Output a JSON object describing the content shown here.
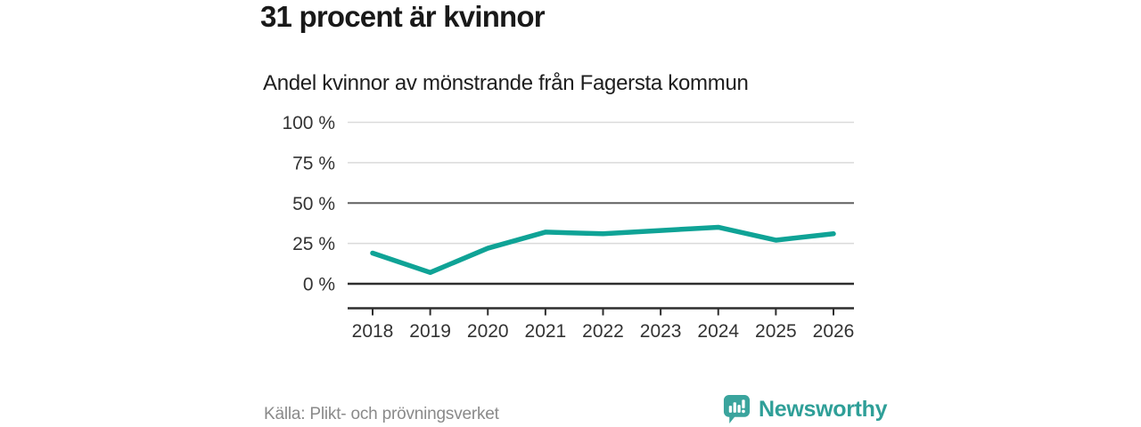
{
  "chart_data": {
    "type": "line",
    "title": "31 procent är kvinnor",
    "subtitle": "Andel kvinnor av mönstrande från Fagersta kommun",
    "categories": [
      "2018",
      "2019",
      "2020",
      "2021",
      "2022",
      "2023",
      "2024",
      "2025",
      "2026"
    ],
    "series": [
      {
        "name": "Andel kvinnor",
        "values": [
          19,
          7,
          22,
          32,
          31,
          33,
          35,
          27,
          31
        ]
      }
    ],
    "xlabel": "",
    "ylabel": "",
    "ylim": [
      0,
      100
    ],
    "yticks": [
      0,
      25,
      50,
      75,
      100
    ],
    "ytick_suffix": " %",
    "grid": "horizontal",
    "legend_position": "none"
  },
  "footer": {
    "source": "Källa: Plikt- och prövningsverket",
    "brand": "Newsworthy"
  },
  "icons": {
    "logo": "newsworthy-speech-bubble-bar-chart-icon"
  },
  "colors": {
    "line_teal": "#0fa396",
    "brand_teal": "#3aa49d",
    "wordmark_teal": "#2f9f98",
    "grid_light": "#dadada",
    "grid_mid": "#606060",
    "axis_dark": "#2e2e2e",
    "tick_text": "#333333",
    "title_text": "#191919",
    "source_text": "#8a8a8a"
  }
}
